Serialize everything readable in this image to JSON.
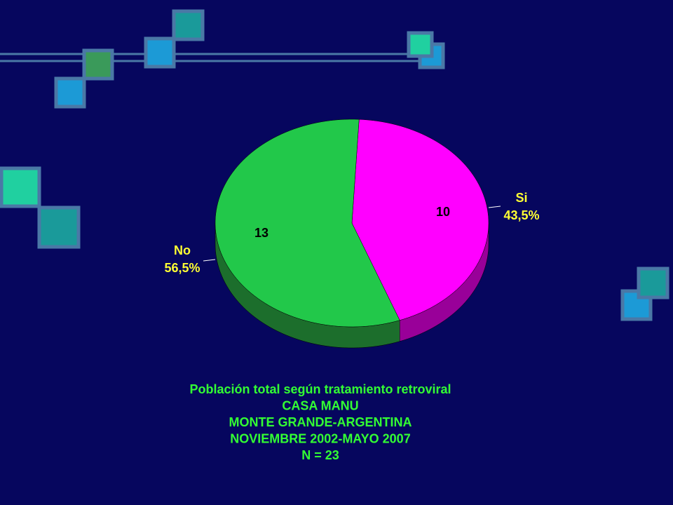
{
  "chart_data": {
    "type": "pie3d",
    "categories": [
      "Si",
      "No"
    ],
    "values": [
      10,
      13
    ],
    "colors": [
      "#ff00ff",
      "#22c84a"
    ],
    "side_colors": [
      "#990099",
      "#1c6e2c"
    ],
    "percents": [
      43.5,
      56.5
    ],
    "percent_labels": [
      "43,5%",
      "56,5%"
    ],
    "title_lines": [
      "Población total según tratamiento retroviral",
      "CASA MANU",
      "MONTE GRANDE-ARGENTINA",
      "NOVIEMBRE 2002-MAYO 2007",
      "N = 23"
    ]
  }
}
